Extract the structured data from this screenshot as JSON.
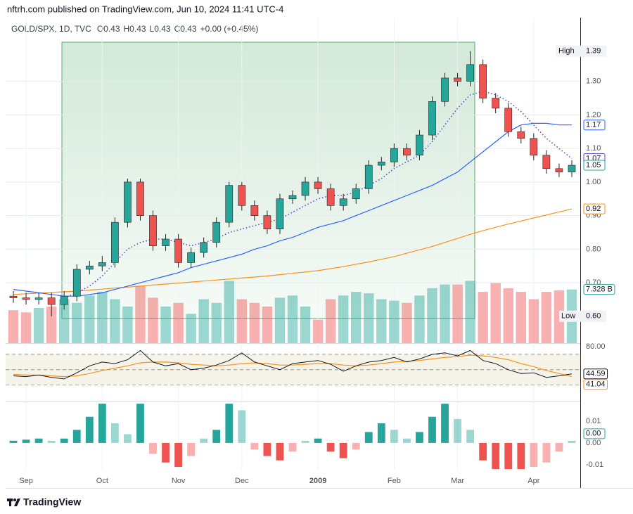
{
  "header": "nftrh.com published on TradingView.com, Jun 10, 2024 11:41 UTC-4",
  "footer": "TradingView",
  "chart_data": [
    {
      "type": "candlestick",
      "legend": {
        "symbol": "GOLD/SPX, 1D, TVC",
        "open": "O0.43",
        "high": "H0.43",
        "low": "L0.43",
        "close": "C0.43",
        "change": "+0.00 (+0.45%)"
      },
      "categories": [
        null,
        "Sep",
        null,
        null,
        null,
        null,
        null,
        "Oct",
        null,
        null,
        null,
        null,
        null,
        "Nov",
        null,
        null,
        null,
        null,
        "Dec",
        null,
        null,
        null,
        null,
        null,
        "2009",
        null,
        null,
        null,
        null,
        null,
        "Feb",
        null,
        null,
        null,
        null,
        "Mar",
        null,
        null,
        null,
        null,
        null,
        "Apr",
        null,
        null,
        null
      ],
      "open": [
        0.66,
        0.655,
        0.65,
        0.655,
        0.635,
        0.66,
        0.74,
        0.75,
        0.76,
        0.88,
        1.0,
        0.9,
        0.81,
        0.83,
        0.76,
        0.79,
        0.82,
        0.88,
        0.99,
        0.93,
        0.9,
        0.86,
        0.95,
        0.96,
        1.0,
        0.98,
        0.93,
        0.95,
        0.98,
        1.05,
        1.06,
        1.1,
        1.08,
        1.14,
        1.24,
        1.31,
        1.3,
        1.35,
        1.25,
        1.22,
        1.15,
        1.13,
        1.08,
        1.04,
        1.03
      ],
      "high": [
        0.675,
        0.67,
        0.67,
        0.67,
        0.675,
        0.755,
        0.765,
        0.78,
        0.895,
        1.01,
        1.01,
        0.915,
        0.845,
        0.845,
        0.805,
        0.835,
        0.895,
        1.0,
        1.0,
        0.945,
        0.915,
        0.965,
        0.975,
        1.015,
        1.015,
        0.995,
        0.965,
        0.995,
        1.065,
        1.075,
        1.115,
        1.115,
        1.155,
        1.255,
        1.325,
        1.325,
        1.39,
        1.365,
        1.265,
        1.235,
        1.165,
        1.145,
        1.095,
        1.055,
        1.065
      ],
      "low": [
        0.64,
        0.635,
        0.635,
        0.6,
        0.62,
        0.645,
        0.725,
        0.735,
        0.745,
        0.865,
        0.885,
        0.795,
        0.795,
        0.745,
        0.745,
        0.775,
        0.805,
        0.865,
        0.915,
        0.885,
        0.845,
        0.845,
        0.935,
        0.945,
        0.965,
        0.915,
        0.915,
        0.935,
        0.965,
        1.035,
        1.045,
        1.065,
        1.065,
        1.125,
        1.225,
        1.285,
        1.285,
        1.235,
        1.205,
        1.135,
        1.115,
        1.065,
        1.025,
        1.015,
        1.015
      ],
      "close": [
        0.655,
        0.65,
        0.655,
        0.635,
        0.66,
        0.74,
        0.75,
        0.76,
        0.88,
        1.0,
        0.9,
        0.81,
        0.83,
        0.76,
        0.79,
        0.82,
        0.88,
        0.99,
        0.93,
        0.9,
        0.86,
        0.95,
        0.96,
        1.0,
        0.98,
        0.93,
        0.95,
        0.98,
        1.05,
        1.06,
        1.1,
        1.08,
        1.14,
        1.24,
        1.31,
        1.3,
        1.35,
        1.25,
        1.22,
        1.15,
        1.13,
        1.08,
        1.04,
        1.03,
        1.05
      ],
      "up_color": "#26a69a",
      "down_color": "#ef5350",
      "ylim": [
        0.52,
        1.49
      ],
      "yticks": [
        {
          "value": 0.7,
          "label": "0.70"
        },
        {
          "value": 0.8,
          "label": "0.80"
        },
        {
          "value": 0.9,
          "label": "0.90"
        },
        {
          "value": 1,
          "label": "1.00"
        },
        {
          "value": 1.1,
          "label": "1.10"
        },
        {
          "value": 1.2,
          "label": "1.20"
        },
        {
          "value": 1.3,
          "label": "1.30"
        }
      ],
      "high_mark": {
        "name": "High",
        "value": 1.39
      },
      "low_mark": {
        "name": "Low",
        "value": 0.6,
        "label": "0.60"
      },
      "series": [
        {
          "color": "#f7931a",
          "style": "solid",
          "values": [
            0.665,
            0.667,
            0.669,
            0.671,
            0.673,
            0.675,
            0.678,
            0.681,
            0.684,
            0.687,
            0.69,
            0.693,
            0.696,
            0.699,
            0.702,
            0.705,
            0.708,
            0.711,
            0.714,
            0.717,
            0.72,
            0.724,
            0.728,
            0.732,
            0.736,
            0.742,
            0.748,
            0.755,
            0.762,
            0.77,
            0.778,
            0.788,
            0.798,
            0.808,
            0.82,
            0.832,
            0.844,
            0.855,
            0.865,
            0.875,
            0.884,
            0.893,
            0.902,
            0.911,
            0.92
          ]
        },
        {
          "color": "#2962ff",
          "style": "solid",
          "values": [
            0.68,
            0.675,
            0.67,
            0.665,
            0.66,
            0.66,
            0.665,
            0.67,
            0.68,
            0.69,
            0.7,
            0.71,
            0.72,
            0.73,
            0.745,
            0.755,
            0.765,
            0.775,
            0.785,
            0.8,
            0.81,
            0.825,
            0.835,
            0.85,
            0.865,
            0.875,
            0.885,
            0.9,
            0.915,
            0.93,
            0.945,
            0.96,
            0.975,
            0.99,
            1.01,
            1.03,
            1.06,
            1.09,
            1.12,
            1.15,
            1.17,
            1.175,
            1.175,
            1.17,
            1.17
          ]
        },
        {
          "color": "#5b4ec9",
          "style": "dotted",
          "values": [
            null,
            null,
            null,
            null,
            0.655,
            0.67,
            0.69,
            0.72,
            0.76,
            0.8,
            0.82,
            0.83,
            0.83,
            0.82,
            0.81,
            0.82,
            0.83,
            0.85,
            0.86,
            0.87,
            0.88,
            0.89,
            0.91,
            0.93,
            0.95,
            0.96,
            0.96,
            0.97,
            0.99,
            1.01,
            1.04,
            1.06,
            1.08,
            1.12,
            1.17,
            1.22,
            1.26,
            1.27,
            1.26,
            1.24,
            1.21,
            1.17,
            1.13,
            1.1,
            1.07
          ]
        }
      ],
      "volume": {
        "values": [
          4.5,
          4.2,
          4.8,
          5,
          6,
          5.5,
          6.5,
          7,
          6,
          5,
          7.8,
          6.2,
          5,
          5.5,
          4,
          6,
          5.5,
          8.5,
          6,
          5.5,
          5,
          6.2,
          6.5,
          5,
          3.2,
          6,
          6.5,
          7,
          6.8,
          6,
          5.8,
          5.5,
          6.5,
          7.5,
          8,
          8,
          8.5,
          7,
          8.2,
          7.5,
          7,
          6,
          7,
          7.2,
          7.328
        ],
        "ylim": [
          0,
          9.6
        ],
        "last_label": "7.328 B"
      }
    },
    {
      "type": "rsi",
      "ylim": [
        9.5,
        83.7
      ],
      "yticks": [
        {
          "value": 80,
          "label": "80.00"
        }
      ],
      "levels": [
        70,
        50,
        30
      ],
      "color": "#131722",
      "values": [
        42,
        41,
        43,
        40,
        38,
        46,
        55,
        60,
        58,
        63,
        75,
        60,
        55,
        58,
        50,
        52,
        56,
        62,
        72,
        60,
        55,
        50,
        58,
        60,
        62,
        57,
        48,
        55,
        60,
        62,
        66,
        60,
        64,
        70,
        72,
        68,
        75,
        62,
        58,
        50,
        45,
        46,
        40,
        42,
        44.59
      ],
      "ma_color": "#f7931a",
      "ma_values": [
        44,
        43,
        43,
        42,
        41,
        42,
        45,
        49,
        52,
        55,
        59,
        60,
        60,
        59,
        57,
        56,
        55,
        56,
        58,
        59,
        58,
        56,
        56,
        57,
        58,
        58,
        56,
        55,
        56,
        58,
        60,
        61,
        62,
        64,
        66,
        67,
        69,
        68,
        66,
        63,
        58,
        54,
        49,
        45,
        41.04
      ]
    },
    {
      "type": "macd",
      "ylim": [
        -0.0123,
        0.0187
      ],
      "yticks": [
        0.01,
        {
          "value": 0,
          "label": "0.00"
        },
        -0.01
      ],
      "up_color": "#26a69a",
      "down_color": "#ef5350",
      "values": [
        0.001,
        0.0015,
        0.002,
        0.001,
        0.002,
        0.006,
        0.012,
        0.018,
        0.009,
        0.004,
        0.018,
        -0.005,
        -0.009,
        -0.011,
        -0.006,
        0.002,
        0.006,
        0.018,
        0.015,
        -0.003,
        -0.006,
        -0.008,
        -0.004,
        0.001,
        0.002,
        -0.004,
        -0.007,
        -0.003,
        0.005,
        0.009,
        0.006,
        0.002,
        0.005,
        0.012,
        0.018,
        0.011,
        0.006,
        -0.008,
        -0.012,
        -0.012,
        -0.012,
        -0.011,
        -0.009,
        -0.004,
        0.001
      ],
      "last_label": "0.00"
    }
  ]
}
